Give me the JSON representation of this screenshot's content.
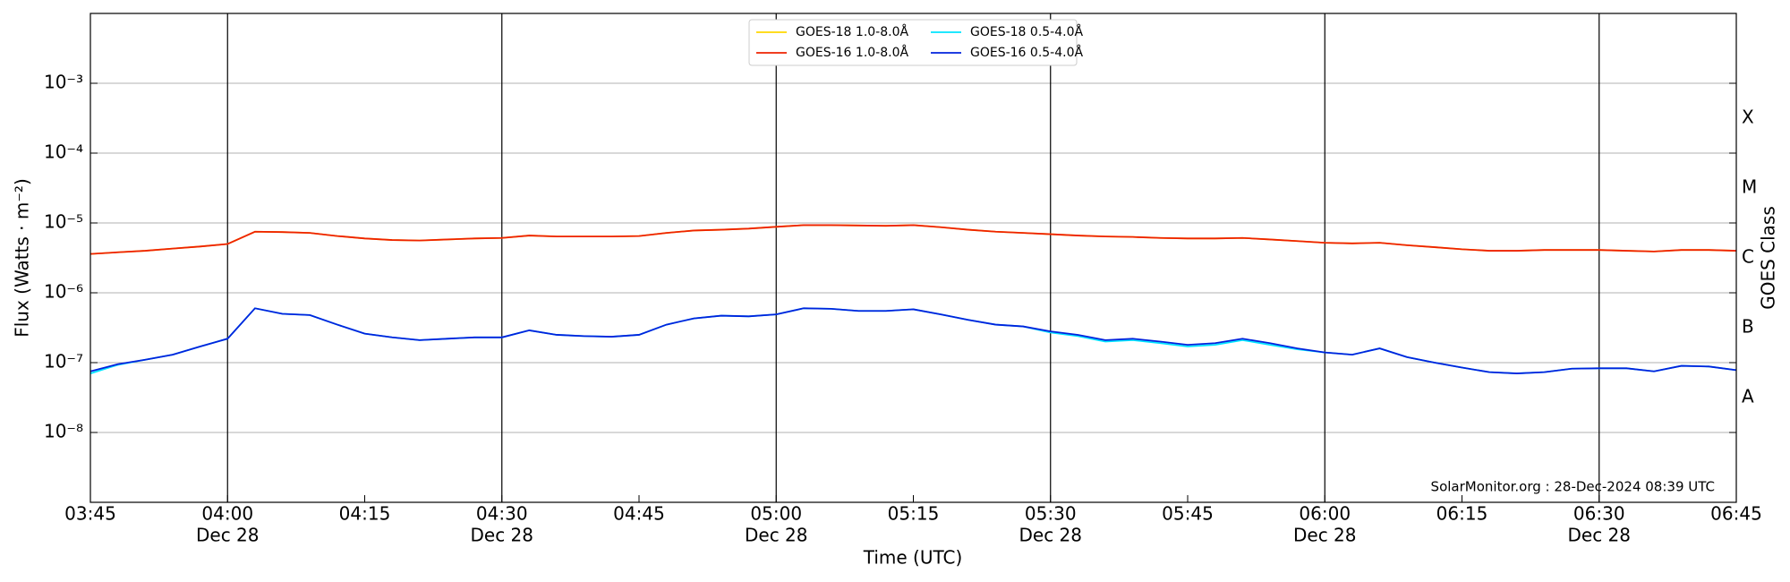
{
  "chart_data": {
    "type": "line",
    "y_label": "Flux (Watts · m⁻²)",
    "x_label": "Time (UTC)",
    "y2_label": "GOES Class",
    "annotation": "SolarMonitor.org : 28-Dec-2024 08:39 UTC",
    "log_y": true,
    "grid": true,
    "legend": "top",
    "xlim": [
      "03:45",
      "06:45"
    ],
    "xticks": [
      "03:45",
      "04:00",
      "04:15",
      "04:30",
      "04:45",
      "05:00",
      "05:15",
      "05:30",
      "05:45",
      "06:00",
      "06:15",
      "06:30",
      "06:45"
    ],
    "xtick_sublabels": [
      null,
      "Dec 28",
      null,
      "Dec 28",
      null,
      "Dec 28",
      null,
      "Dec 28",
      null,
      "Dec 28",
      null,
      "Dec 28",
      null
    ],
    "ylim": [
      1e-09,
      0.01
    ],
    "yticks": [
      {
        "value": 0.001,
        "label": "10⁻³"
      },
      {
        "value": 0.0001,
        "label": "10⁻⁴"
      },
      {
        "value": 1e-05,
        "label": "10⁻⁵"
      },
      {
        "value": 1e-06,
        "label": "10⁻⁶"
      },
      {
        "value": 1e-07,
        "label": "10⁻⁷"
      },
      {
        "value": 1e-08,
        "label": "10⁻⁸"
      }
    ],
    "classes": [
      {
        "label": "A",
        "value": 1e-08
      },
      {
        "label": "B",
        "value": 1e-07
      },
      {
        "label": "C",
        "value": 1e-06
      },
      {
        "label": "M",
        "value": 1e-05
      },
      {
        "label": "X",
        "value": 0.0001
      }
    ],
    "x": [
      "03:45",
      "03:48",
      "03:51",
      "03:54",
      "03:57",
      "04:00",
      "04:03",
      "04:06",
      "04:09",
      "04:12",
      "04:15",
      "04:18",
      "04:21",
      "04:24",
      "04:27",
      "04:30",
      "04:33",
      "04:36",
      "04:39",
      "04:42",
      "04:45",
      "04:48",
      "04:51",
      "04:54",
      "04:57",
      "05:00",
      "05:03",
      "05:06",
      "05:09",
      "05:12",
      "05:15",
      "05:18",
      "05:21",
      "05:24",
      "05:27",
      "05:30",
      "05:33",
      "05:36",
      "05:39",
      "05:42",
      "05:45",
      "05:48",
      "05:51",
      "05:54",
      "05:57",
      "06:00",
      "06:03",
      "06:06",
      "06:09",
      "06:12",
      "06:15",
      "06:18",
      "06:21",
      "06:24",
      "06:27",
      "06:30",
      "06:33",
      "06:36",
      "06:39",
      "06:42",
      "06:45"
    ],
    "series": [
      {
        "name": "GOES-18 1.0-8.0Å",
        "color": "#ffd700",
        "values": [
          3.6e-06,
          3.8e-06,
          4e-06,
          4.3e-06,
          4.6e-06,
          5e-06,
          7.5e-06,
          7.4e-06,
          7.2e-06,
          6.5e-06,
          6e-06,
          5.7e-06,
          5.6e-06,
          5.8e-06,
          6e-06,
          6.1e-06,
          6.6e-06,
          6.4e-06,
          6.4e-06,
          6.4e-06,
          6.5e-06,
          7.2e-06,
          7.8e-06,
          8e-06,
          8.3e-06,
          8.8e-06,
          9.3e-06,
          9.3e-06,
          9.2e-06,
          9.1e-06,
          9.3e-06,
          8.7e-06,
          8e-06,
          7.5e-06,
          7.2e-06,
          6.9e-06,
          6.6e-06,
          6.4e-06,
          6.3e-06,
          6.1e-06,
          6e-06,
          6e-06,
          6.1e-06,
          5.8e-06,
          5.5e-06,
          5.2e-06,
          5.1e-06,
          5.2e-06,
          4.8e-06,
          4.5e-06,
          4.2e-06,
          4e-06,
          4e-06,
          4.1e-06,
          4.1e-06,
          4.1e-06,
          4e-06,
          3.9e-06,
          4.1e-06,
          4.1e-06,
          4e-06
        ]
      },
      {
        "name": "GOES-16 1.0-8.0Å",
        "color": "#ee2200",
        "values": [
          3.6e-06,
          3.8e-06,
          4e-06,
          4.3e-06,
          4.6e-06,
          5e-06,
          7.5e-06,
          7.4e-06,
          7.2e-06,
          6.5e-06,
          6e-06,
          5.7e-06,
          5.6e-06,
          5.8e-06,
          6e-06,
          6.1e-06,
          6.6e-06,
          6.4e-06,
          6.4e-06,
          6.4e-06,
          6.5e-06,
          7.2e-06,
          7.8e-06,
          8e-06,
          8.3e-06,
          8.8e-06,
          9.3e-06,
          9.3e-06,
          9.2e-06,
          9.1e-06,
          9.3e-06,
          8.7e-06,
          8e-06,
          7.5e-06,
          7.2e-06,
          6.9e-06,
          6.6e-06,
          6.4e-06,
          6.3e-06,
          6.1e-06,
          6e-06,
          6e-06,
          6.1e-06,
          5.8e-06,
          5.5e-06,
          5.2e-06,
          5.1e-06,
          5.2e-06,
          4.8e-06,
          4.5e-06,
          4.2e-06,
          4e-06,
          4e-06,
          4.1e-06,
          4.1e-06,
          4.1e-06,
          4e-06,
          3.9e-06,
          4.1e-06,
          4.1e-06,
          4e-06
        ]
      },
      {
        "name": "GOES-18 0.5-4.0Å",
        "color": "#00e5ff",
        "values": [
          7e-08,
          9.3e-08,
          1.1e-07,
          1.3e-07,
          1.7e-07,
          2.2e-07,
          6e-07,
          5e-07,
          4.8e-07,
          3.5e-07,
          2.6e-07,
          2.3e-07,
          2.1e-07,
          2.2e-07,
          2.3e-07,
          2.3e-07,
          2.9e-07,
          2.5e-07,
          2.4e-07,
          2.35e-07,
          2.5e-07,
          3.5e-07,
          4.3e-07,
          4.7e-07,
          4.6e-07,
          4.9e-07,
          6e-07,
          5.9e-07,
          5.5e-07,
          5.5e-07,
          5.8e-07,
          4.9e-07,
          4.1e-07,
          3.5e-07,
          3.3e-07,
          2.7e-07,
          2.4e-07,
          2e-07,
          2.1e-07,
          1.9e-07,
          1.7e-07,
          1.8e-07,
          2.1e-07,
          1.8e-07,
          1.55e-07,
          1.4e-07,
          1.3e-07,
          1.6e-07,
          1.2e-07,
          1e-07,
          8.5e-08,
          7.3e-08,
          7e-08,
          7.3e-08,
          8.2e-08,
          8.3e-08,
          8.3e-08,
          7.5e-08,
          9e-08,
          8.8e-08,
          7.8e-08
        ]
      },
      {
        "name": "GOES-16 0.5-4.0Å",
        "color": "#0022dd",
        "values": [
          7.5e-08,
          9.5e-08,
          1.1e-07,
          1.3e-07,
          1.7e-07,
          2.2e-07,
          6e-07,
          5e-07,
          4.8e-07,
          3.5e-07,
          2.6e-07,
          2.3e-07,
          2.1e-07,
          2.2e-07,
          2.3e-07,
          2.3e-07,
          2.9e-07,
          2.5e-07,
          2.4e-07,
          2.35e-07,
          2.5e-07,
          3.5e-07,
          4.3e-07,
          4.7e-07,
          4.6e-07,
          4.9e-07,
          6e-07,
          5.9e-07,
          5.5e-07,
          5.5e-07,
          5.8e-07,
          4.9e-07,
          4.1e-07,
          3.5e-07,
          3.3e-07,
          2.8e-07,
          2.5e-07,
          2.1e-07,
          2.2e-07,
          2e-07,
          1.8e-07,
          1.9e-07,
          2.2e-07,
          1.9e-07,
          1.6e-07,
          1.4e-07,
          1.3e-07,
          1.6e-07,
          1.2e-07,
          1e-07,
          8.5e-08,
          7.3e-08,
          7e-08,
          7.3e-08,
          8.2e-08,
          8.3e-08,
          8.3e-08,
          7.5e-08,
          9e-08,
          8.8e-08,
          7.8e-08
        ]
      }
    ]
  }
}
